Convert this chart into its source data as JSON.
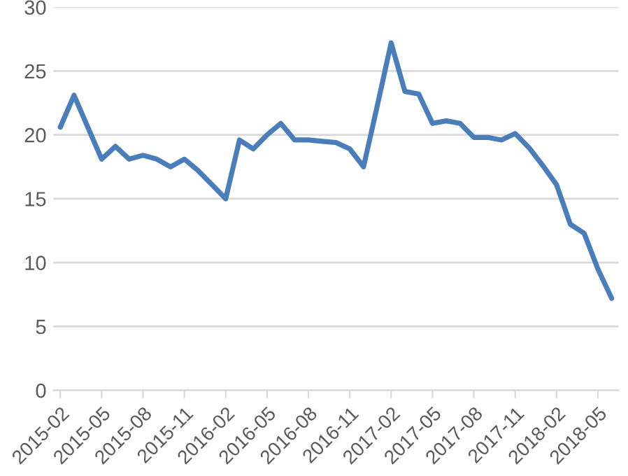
{
  "chart_data": {
    "type": "line",
    "categories": [
      "2015-02",
      null,
      null,
      "2015-05",
      null,
      null,
      "2015-08",
      null,
      null,
      "2015-11",
      null,
      null,
      "2016-02",
      null,
      null,
      "2016-05",
      null,
      null,
      "2016-08",
      null,
      null,
      "2016-11",
      null,
      null,
      "2017-02",
      null,
      null,
      "2017-05",
      null,
      null,
      "2017-08",
      null,
      null,
      "2017-11",
      null,
      null,
      "2018-02",
      null,
      null,
      "2018-05",
      null
    ],
    "series": [
      {
        "color": "#4a7ebb",
        "values": [
          20.6,
          23.1,
          20.6,
          18.1,
          19.1,
          18.1,
          18.4,
          18.1,
          17.5,
          18.1,
          17.2,
          16.1,
          15.0,
          19.6,
          18.9,
          20.0,
          20.9,
          19.6,
          19.6,
          19.5,
          19.4,
          18.9,
          17.5,
          22.3,
          27.2,
          23.4,
          23.2,
          20.9,
          21.1,
          20.9,
          19.8,
          19.8,
          19.6,
          20.1,
          19.0,
          17.6,
          16.1,
          13.0,
          12.3,
          9.5,
          7.2
        ]
      }
    ],
    "ylim": [
      0,
      30
    ],
    "yticks": [
      0,
      5,
      10,
      15,
      20,
      25,
      30
    ],
    "grid": "y",
    "legend": false,
    "marker": "none",
    "line_style": "solid"
  }
}
